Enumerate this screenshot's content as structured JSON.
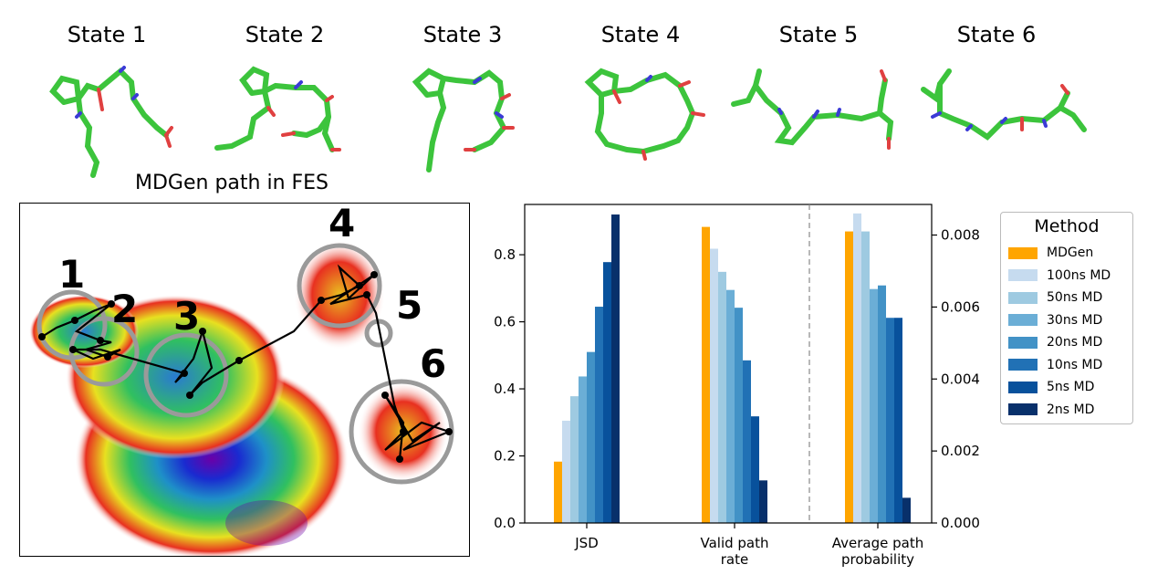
{
  "states": [
    "State 1",
    "State 2",
    "State 3",
    "State 4",
    "State 5",
    "State 6"
  ],
  "fes": {
    "title": "MDGen path in FES",
    "labels": [
      "1",
      "2",
      "3",
      "4",
      "5",
      "6"
    ]
  },
  "colors": {
    "MDGen": "#ffa500",
    "100ns MD": "#c6dbef",
    "50ns MD": "#9ecae1",
    "30ns MD": "#6baed6",
    "20ns MD": "#4292c6",
    "10ns MD": "#2171b5",
    "5ns MD": "#08519c",
    "2ns MD": "#08306b"
  },
  "chart_data": {
    "type": "bar",
    "categories": [
      "JSD",
      "Valid path rate",
      "Average path probability"
    ],
    "category_lines": [
      [
        "JSD"
      ],
      [
        "Valid path",
        "rate"
      ],
      [
        "Average path",
        "probability"
      ]
    ],
    "series": [
      {
        "name": "MDGen",
        "values": [
          0.183,
          0.883,
          0.0081
        ]
      },
      {
        "name": "100ns MD",
        "values": [
          0.305,
          0.818,
          0.0086
        ]
      },
      {
        "name": "50ns MD",
        "values": [
          0.378,
          0.749,
          0.0081
        ]
      },
      {
        "name": "30ns MD",
        "values": [
          0.437,
          0.695,
          0.0065
        ]
      },
      {
        "name": "20ns MD",
        "values": [
          0.51,
          0.642,
          0.0066
        ]
      },
      {
        "name": "10ns MD",
        "values": [
          0.645,
          0.485,
          0.0057
        ]
      },
      {
        "name": "5ns MD",
        "values": [
          0.778,
          0.318,
          0.0057
        ]
      },
      {
        "name": "2ns MD",
        "values": [
          0.92,
          0.127,
          0.0007
        ]
      }
    ],
    "left_axis": {
      "ylim": [
        0,
        0.95
      ],
      "ticks": [
        "0.0",
        "0.2",
        "0.4",
        "0.6",
        "0.8"
      ]
    },
    "right_axis": {
      "ylim": [
        0,
        0.00885
      ],
      "ticks": [
        "0.000",
        "0.002",
        "0.004",
        "0.006",
        "0.008"
      ]
    },
    "right_axis_categories": [
      "Average path probability"
    ],
    "legend": {
      "title": "Method",
      "placement": "right"
    },
    "grid": false
  }
}
